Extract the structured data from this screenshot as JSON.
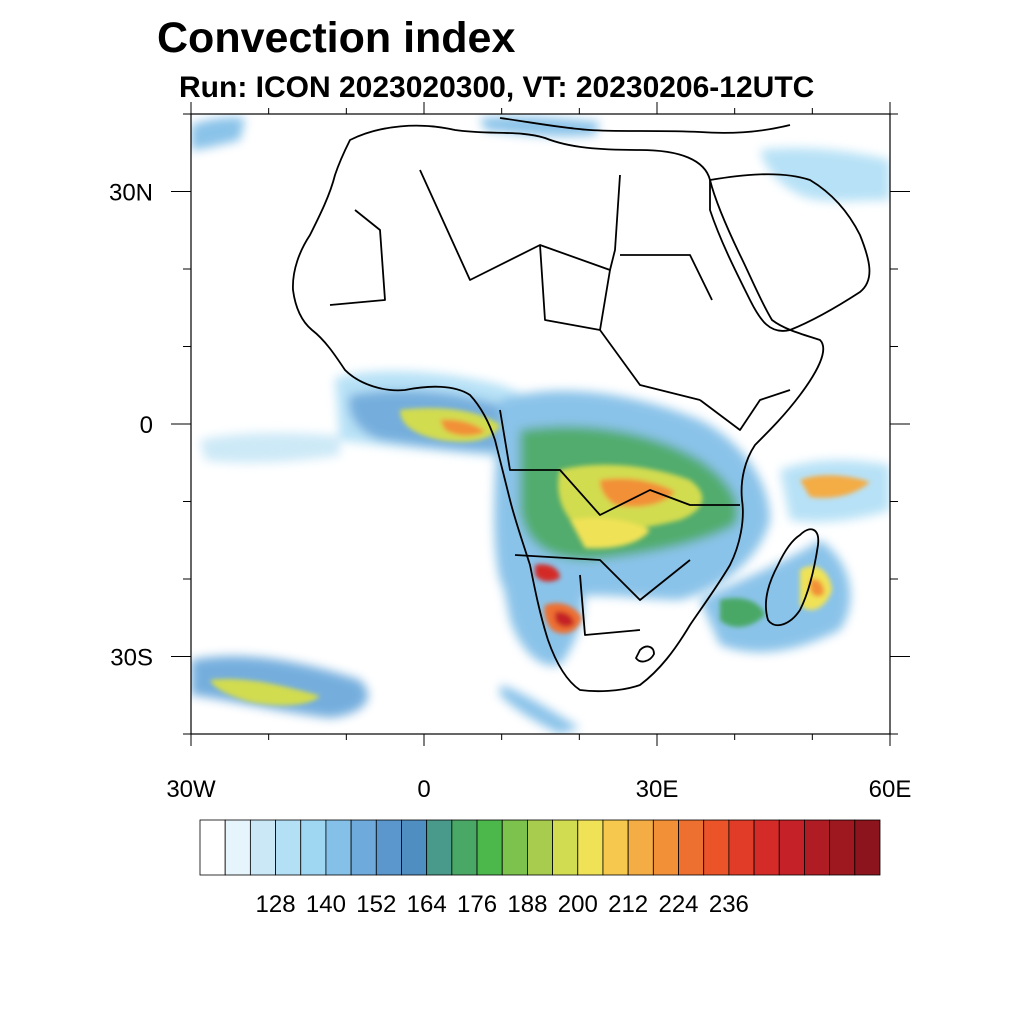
{
  "title": "Convection index",
  "subtitle": "Run: ICON 2023020300,  VT: 20230206-12UTC",
  "map": {
    "lon_range": [
      -30,
      60
    ],
    "lat_range": [
      -40,
      40
    ],
    "lon_ticks": [
      {
        "value": -30,
        "label": "30W"
      },
      {
        "value": 0,
        "label": "0"
      },
      {
        "value": 30,
        "label": "30E"
      },
      {
        "value": 60,
        "label": "60E"
      }
    ],
    "lat_ticks": [
      {
        "value": 30,
        "label": "30N"
      },
      {
        "value": 0,
        "label": "0"
      },
      {
        "value": -30,
        "label": "30S"
      }
    ],
    "field": "Convection index",
    "region": "Africa"
  },
  "colorbar": {
    "labels": [
      "128",
      "140",
      "152",
      "164",
      "176",
      "188",
      "200",
      "212",
      "224",
      "236"
    ],
    "colors": [
      "#ffffff",
      "#e6f4fc",
      "#cbe8f7",
      "#b4e0f6",
      "#9fd6f2",
      "#84c0e8",
      "#6eaadc",
      "#5b96cc",
      "#4f8ec0",
      "#4a9a8c",
      "#4aa866",
      "#4cb84c",
      "#7cc24c",
      "#a8cc4e",
      "#d2dc50",
      "#f0e256",
      "#f6c84e",
      "#f4ac44",
      "#f29038",
      "#ee7030",
      "#ea5428",
      "#e03c28",
      "#d42a28",
      "#c42228",
      "#b01c24",
      "#9e1820",
      "#8c141c"
    ]
  }
}
